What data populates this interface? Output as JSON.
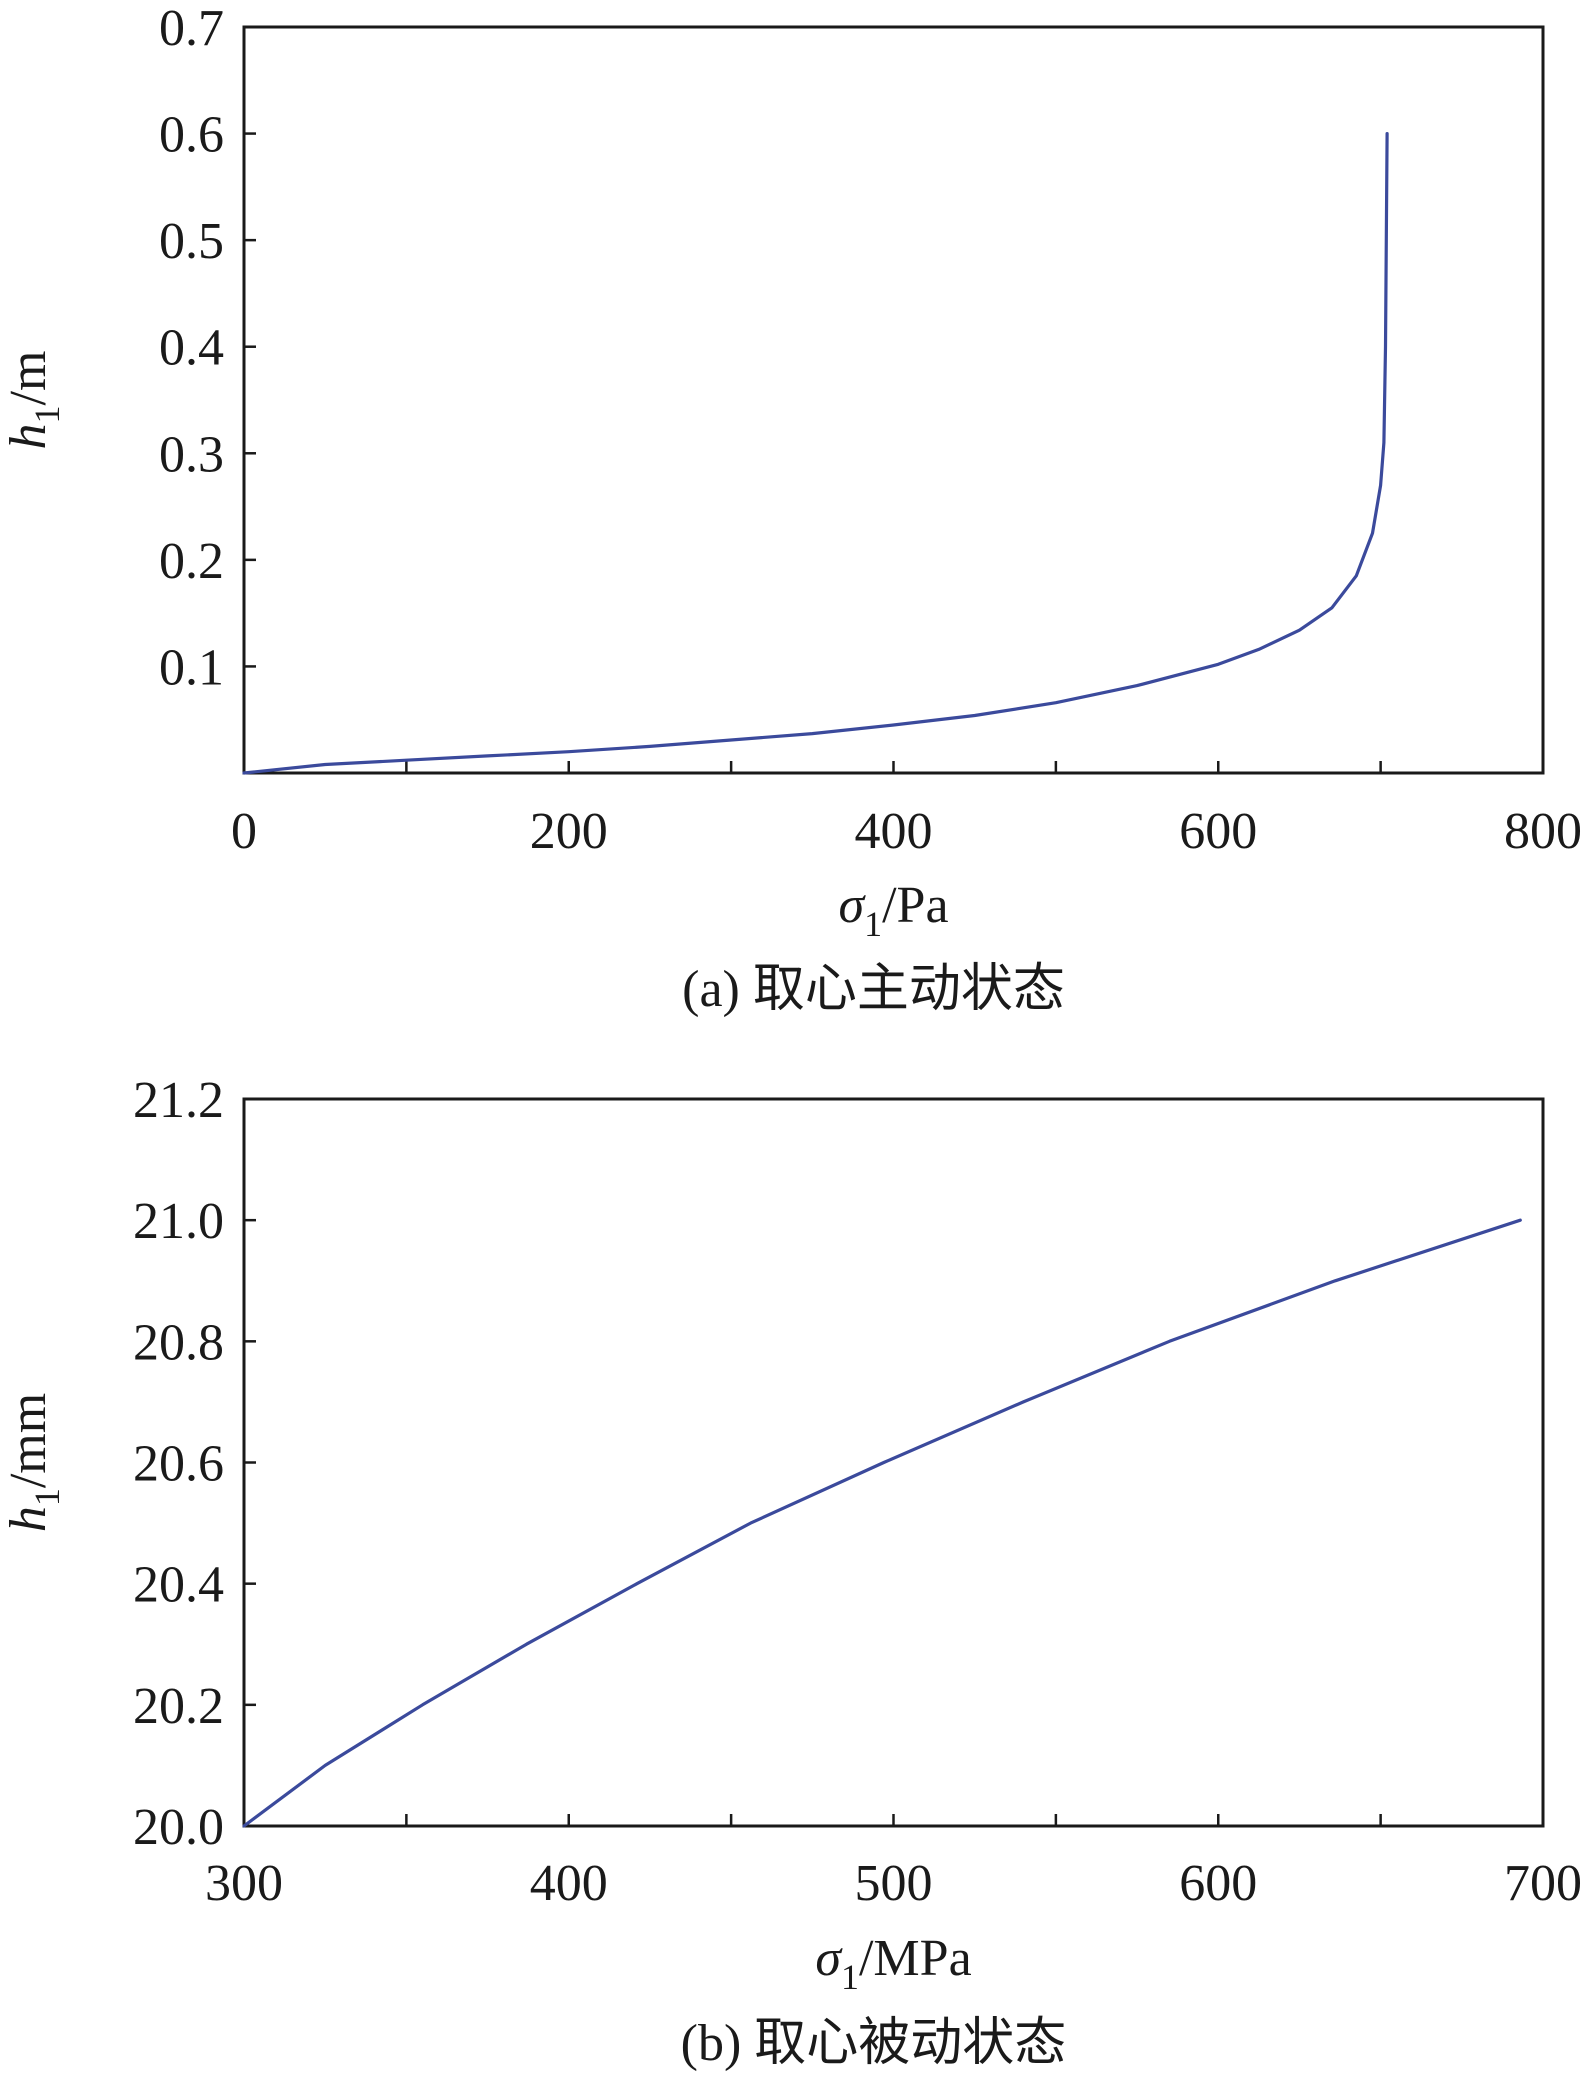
{
  "colors": {
    "line": "#3b4a9c",
    "axis": "#1a1a1a",
    "background": "#ffffff"
  },
  "chart_data": [
    {
      "type": "line",
      "caption": "(a) 取心主动状态",
      "xlabel": {
        "symbol": "σ",
        "sub": "1",
        "unit": "/Pa"
      },
      "ylabel": {
        "symbol": "h",
        "sub": "1",
        "unit": "/m"
      },
      "xlim": [
        0,
        800
      ],
      "ylim": [
        0,
        0.7
      ],
      "xticks": [
        0,
        200,
        400,
        600,
        800
      ],
      "xtick_labels": [
        "0",
        "200",
        "400",
        "600",
        "800"
      ],
      "xminor": [
        100,
        300,
        500,
        700
      ],
      "yticks": [
        0.1,
        0.2,
        0.3,
        0.4,
        0.5,
        0.6,
        0.7
      ],
      "ytick_labels": [
        "0.1",
        "0.2",
        "0.3",
        "0.4",
        "0.5",
        "0.6",
        "0.7"
      ],
      "grid": false,
      "series": [
        {
          "x": [
            0,
            50,
            100,
            150,
            200,
            250,
            300,
            350,
            400,
            450,
            500,
            550,
            600,
            625,
            650,
            670,
            685,
            695,
            700,
            702,
            703,
            703.5,
            704
          ],
          "y": [
            0.0,
            0.008,
            0.012,
            0.016,
            0.02,
            0.025,
            0.031,
            0.037,
            0.045,
            0.054,
            0.066,
            0.082,
            0.102,
            0.116,
            0.134,
            0.155,
            0.185,
            0.225,
            0.27,
            0.31,
            0.4,
            0.5,
            0.6
          ]
        }
      ]
    },
    {
      "type": "line",
      "caption": "(b) 取心被动状态",
      "xlabel": {
        "symbol": "σ",
        "sub": "1",
        "unit": "/MPa"
      },
      "ylabel": {
        "symbol": "h",
        "sub": "1",
        "unit": "/mm"
      },
      "xlim": [
        300,
        700
      ],
      "ylim": [
        20.0,
        21.2
      ],
      "xticks": [
        300,
        400,
        500,
        600,
        700
      ],
      "xtick_labels": [
        "300",
        "400",
        "500",
        "600",
        "700"
      ],
      "xminor": [
        350,
        450,
        550,
        650
      ],
      "yticks": [
        20.0,
        20.2,
        20.4,
        20.6,
        20.8,
        21.0,
        21.2
      ],
      "ytick_labels": [
        "20.0",
        "20.2",
        "20.4",
        "20.6",
        "20.8",
        "21.0",
        "21.2"
      ],
      "grid": false,
      "series": [
        {
          "x": [
            300,
            325,
            355,
            387,
            421,
            456,
            497,
            540,
            585,
            636,
            693
          ],
          "y": [
            20.0,
            20.1,
            20.2,
            20.3,
            20.4,
            20.5,
            20.6,
            20.7,
            20.8,
            20.9,
            21.0
          ]
        }
      ]
    }
  ]
}
